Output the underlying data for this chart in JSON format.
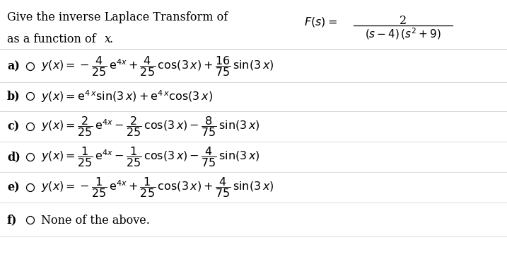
{
  "bg_color": "#ffffff",
  "text_color": "#000000",
  "font_size": 11.5,
  "header": "Give the inverse Laplace Transform of",
  "subheader": "as a function of ",
  "subheader_x": "x",
  "fs_label": "$F(s) = $",
  "fs_num": "2",
  "fs_den": "$(s-4)\\,(s^{2}+9)$",
  "options": [
    {
      "label": "a)",
      "math": "$y(x) = -\\dfrac{4}{25}\\,\\mathrm{e}^{4x} + \\dfrac{4}{25}\\,\\cos(3\\,x) + \\dfrac{16}{75}\\,\\sin(3\\,x)$"
    },
    {
      "label": "b)",
      "math": "$y(x) = \\mathrm{e}^{4\\,x}\\sin(3\\,x) + \\mathrm{e}^{4\\,x}\\cos(3\\,x)$"
    },
    {
      "label": "c)",
      "math": "$y(x) = \\dfrac{2}{25}\\,\\mathrm{e}^{4x} - \\dfrac{2}{25}\\,\\cos(3\\,x) - \\dfrac{8}{75}\\,\\sin(3\\,x)$"
    },
    {
      "label": "d)",
      "math": "$y(x) = \\dfrac{1}{25}\\,\\mathrm{e}^{4x} - \\dfrac{1}{25}\\,\\cos(3\\,x) - \\dfrac{4}{75}\\,\\sin(3\\,x)$"
    },
    {
      "label": "e)",
      "math": "$y(x) = -\\dfrac{1}{25}\\,\\mathrm{e}^{4x} + \\dfrac{1}{25}\\,\\cos(3\\,x) + \\dfrac{4}{75}\\,\\sin(3\\,x)$"
    },
    {
      "label": "f)",
      "math": "None of the above."
    }
  ],
  "sep_color": "#cccccc",
  "circle_color": "#000000",
  "label_bold": true
}
